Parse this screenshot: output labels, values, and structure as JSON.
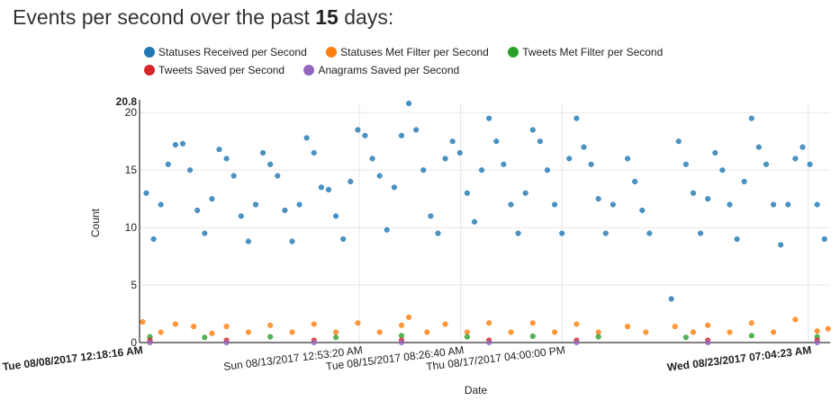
{
  "header": {
    "title_prefix": "Events per second over the past ",
    "title_days": "15",
    "title_suffix": " days:"
  },
  "legend": [
    {
      "name": "Statuses Received per Second",
      "color": "#1f77b4"
    },
    {
      "name": "Statuses Met Filter per Second",
      "color": "#ff7f0e"
    },
    {
      "name": "Tweets Met Filter per Second",
      "color": "#2ca02c"
    },
    {
      "name": "Tweets Saved per Second",
      "color": "#d62728"
    },
    {
      "name": "Anagrams Saved per Second",
      "color": "#9467bd"
    }
  ],
  "chart_data": {
    "type": "scatter",
    "title": "Events per second over the past 15 days:",
    "xlabel": "Date",
    "ylabel": "Count",
    "ylim": [
      0,
      20.8
    ],
    "y_ticks": [
      "0",
      "5",
      "10",
      "15",
      "20"
    ],
    "y_max_label": "20.8",
    "x_range": [
      "2017-08-08 00:18:16",
      "2017-08-23 19:04:23"
    ],
    "x_ticks": [
      {
        "label": "Tue 08/08/2017 12:18:16 AM",
        "t": "2017-08-08 00:18:16",
        "bold": true
      },
      {
        "label": "Sun 08/13/2017 12:53:20 AM",
        "t": "2017-08-13 00:53:20",
        "bold": false
      },
      {
        "label": "Tue 08/15/2017 08:26:40 AM",
        "t": "2017-08-15 08:26:40",
        "bold": false
      },
      {
        "label": "Thu 08/17/2017 04:00:00 PM",
        "t": "2017-08-17 16:00:00",
        "bold": false
      },
      {
        "label": "Wed 08/23/2017 07:04:23 AM",
        "t": "2017-08-23 07:04:23",
        "bold": true
      }
    ],
    "grid": true,
    "legend_position": "top",
    "gap": [
      "2017-08-20 00:00:00",
      "2017-08-20 02:30:00"
    ],
    "series": [
      {
        "name": "Statuses Received per Second",
        "color": "#1f77b4",
        "points": [
          [
            "2017-08-08 04:00",
            13.0
          ],
          [
            "2017-08-08 08:00",
            9.0
          ],
          [
            "2017-08-08 12:00",
            12.0
          ],
          [
            "2017-08-08 16:00",
            15.5
          ],
          [
            "2017-08-08 20:00",
            17.2
          ],
          [
            "2017-08-09 00:00",
            17.3
          ],
          [
            "2017-08-09 04:00",
            15.0
          ],
          [
            "2017-08-09 08:00",
            11.5
          ],
          [
            "2017-08-09 12:00",
            9.5
          ],
          [
            "2017-08-09 16:00",
            12.5
          ],
          [
            "2017-08-09 20:00",
            16.8
          ],
          [
            "2017-08-10 00:00",
            16.0
          ],
          [
            "2017-08-10 04:00",
            14.5
          ],
          [
            "2017-08-10 08:00",
            11.0
          ],
          [
            "2017-08-10 12:00",
            8.8
          ],
          [
            "2017-08-10 16:00",
            12.0
          ],
          [
            "2017-08-10 20:00",
            16.5
          ],
          [
            "2017-08-11 00:00",
            15.5
          ],
          [
            "2017-08-11 04:00",
            14.5
          ],
          [
            "2017-08-11 08:00",
            11.5
          ],
          [
            "2017-08-11 12:00",
            8.8
          ],
          [
            "2017-08-11 16:00",
            12.0
          ],
          [
            "2017-08-11 20:00",
            17.8
          ],
          [
            "2017-08-12 00:00",
            16.5
          ],
          [
            "2017-08-12 04:00",
            13.5
          ],
          [
            "2017-08-12 08:00",
            13.3
          ],
          [
            "2017-08-12 12:00",
            11.0
          ],
          [
            "2017-08-12 16:00",
            9.0
          ],
          [
            "2017-08-12 20:00",
            14.0
          ],
          [
            "2017-08-13 00:00",
            18.5
          ],
          [
            "2017-08-13 04:00",
            18.0
          ],
          [
            "2017-08-13 08:00",
            16.0
          ],
          [
            "2017-08-13 12:00",
            14.5
          ],
          [
            "2017-08-13 16:00",
            9.8
          ],
          [
            "2017-08-13 20:00",
            13.5
          ],
          [
            "2017-08-14 00:00",
            18.0
          ],
          [
            "2017-08-14 04:00",
            20.8
          ],
          [
            "2017-08-14 08:00",
            18.5
          ],
          [
            "2017-08-14 12:00",
            15.0
          ],
          [
            "2017-08-14 16:00",
            11.0
          ],
          [
            "2017-08-14 20:00",
            9.5
          ],
          [
            "2017-08-15 00:00",
            16.0
          ],
          [
            "2017-08-15 04:00",
            17.5
          ],
          [
            "2017-08-15 08:00",
            16.5
          ],
          [
            "2017-08-15 12:00",
            13.0
          ],
          [
            "2017-08-15 16:00",
            10.5
          ],
          [
            "2017-08-15 20:00",
            15.0
          ],
          [
            "2017-08-16 00:00",
            19.5
          ],
          [
            "2017-08-16 04:00",
            17.5
          ],
          [
            "2017-08-16 08:00",
            15.5
          ],
          [
            "2017-08-16 12:00",
            12.0
          ],
          [
            "2017-08-16 16:00",
            9.5
          ],
          [
            "2017-08-16 20:00",
            13.0
          ],
          [
            "2017-08-17 00:00",
            18.5
          ],
          [
            "2017-08-17 04:00",
            17.5
          ],
          [
            "2017-08-17 08:00",
            15.0
          ],
          [
            "2017-08-17 12:00",
            12.0
          ],
          [
            "2017-08-17 16:00",
            9.5
          ],
          [
            "2017-08-17 20:00",
            16.0
          ],
          [
            "2017-08-18 00:00",
            19.5
          ],
          [
            "2017-08-18 04:00",
            17.0
          ],
          [
            "2017-08-18 08:00",
            15.5
          ],
          [
            "2017-08-18 12:00",
            12.5
          ],
          [
            "2017-08-18 16:00",
            9.5
          ],
          [
            "2017-08-18 20:00",
            12.0
          ],
          [
            "2017-08-19 04:00",
            16.0
          ],
          [
            "2017-08-19 08:00",
            14.0
          ],
          [
            "2017-08-19 12:00",
            11.5
          ],
          [
            "2017-08-19 16:00",
            9.5
          ],
          [
            "2017-08-20 04:00",
            3.8
          ],
          [
            "2017-08-20 08:00",
            17.5
          ],
          [
            "2017-08-20 12:00",
            15.5
          ],
          [
            "2017-08-20 16:00",
            13.0
          ],
          [
            "2017-08-20 20:00",
            9.5
          ],
          [
            "2017-08-21 00:00",
            12.5
          ],
          [
            "2017-08-21 04:00",
            16.5
          ],
          [
            "2017-08-21 08:00",
            15.0
          ],
          [
            "2017-08-21 12:00",
            12.0
          ],
          [
            "2017-08-21 16:00",
            9.0
          ],
          [
            "2017-08-21 20:00",
            14.0
          ],
          [
            "2017-08-22 00:00",
            19.5
          ],
          [
            "2017-08-22 04:00",
            17.0
          ],
          [
            "2017-08-22 08:00",
            15.5
          ],
          [
            "2017-08-22 12:00",
            12.0
          ],
          [
            "2017-08-22 16:00",
            8.5
          ],
          [
            "2017-08-22 20:00",
            12.0
          ],
          [
            "2017-08-23 00:00",
            16.0
          ],
          [
            "2017-08-23 04:00",
            17.0
          ],
          [
            "2017-08-23 08:00",
            15.5
          ],
          [
            "2017-08-23 12:00",
            12.0
          ],
          [
            "2017-08-23 16:00",
            9.0
          ]
        ]
      },
      {
        "name": "Statuses Met Filter per Second",
        "color": "#ff7f0e",
        "points": [
          [
            "2017-08-08 02:00",
            1.8
          ],
          [
            "2017-08-08 12:00",
            0.9
          ],
          [
            "2017-08-08 20:00",
            1.6
          ],
          [
            "2017-08-09 06:00",
            1.4
          ],
          [
            "2017-08-09 16:00",
            0.8
          ],
          [
            "2017-08-10 00:00",
            1.4
          ],
          [
            "2017-08-10 12:00",
            0.9
          ],
          [
            "2017-08-11 00:00",
            1.5
          ],
          [
            "2017-08-11 12:00",
            0.9
          ],
          [
            "2017-08-12 00:00",
            1.6
          ],
          [
            "2017-08-12 12:00",
            0.9
          ],
          [
            "2017-08-13 00:00",
            1.7
          ],
          [
            "2017-08-13 12:00",
            0.9
          ],
          [
            "2017-08-14 00:00",
            1.5
          ],
          [
            "2017-08-14 04:00",
            2.2
          ],
          [
            "2017-08-14 14:00",
            0.9
          ],
          [
            "2017-08-15 00:00",
            1.6
          ],
          [
            "2017-08-15 12:00",
            0.9
          ],
          [
            "2017-08-16 00:00",
            1.7
          ],
          [
            "2017-08-16 12:00",
            0.9
          ],
          [
            "2017-08-17 00:00",
            1.7
          ],
          [
            "2017-08-17 12:00",
            0.9
          ],
          [
            "2017-08-18 00:00",
            1.6
          ],
          [
            "2017-08-18 12:00",
            0.9
          ],
          [
            "2017-08-19 04:00",
            1.4
          ],
          [
            "2017-08-19 14:00",
            0.9
          ],
          [
            "2017-08-20 06:00",
            1.4
          ],
          [
            "2017-08-20 16:00",
            0.9
          ],
          [
            "2017-08-21 00:00",
            1.5
          ],
          [
            "2017-08-21 12:00",
            0.9
          ],
          [
            "2017-08-22 00:00",
            1.7
          ],
          [
            "2017-08-22 12:00",
            0.9
          ],
          [
            "2017-08-23 00:00",
            2.0
          ],
          [
            "2017-08-23 12:00",
            1.0
          ],
          [
            "2017-08-23 18:00",
            1.2
          ]
        ]
      },
      {
        "name": "Tweets Met Filter per Second",
        "color": "#2ca02c",
        "points": [
          [
            "2017-08-08 06:00",
            0.5
          ],
          [
            "2017-08-09 12:00",
            0.45
          ],
          [
            "2017-08-11 00:00",
            0.5
          ],
          [
            "2017-08-12 12:00",
            0.45
          ],
          [
            "2017-08-14 00:00",
            0.6
          ],
          [
            "2017-08-15 12:00",
            0.5
          ],
          [
            "2017-08-17 00:00",
            0.55
          ],
          [
            "2017-08-18 12:00",
            0.5
          ],
          [
            "2017-08-20 12:00",
            0.45
          ],
          [
            "2017-08-22 00:00",
            0.6
          ],
          [
            "2017-08-23 12:00",
            0.5
          ]
        ]
      },
      {
        "name": "Tweets Saved per Second",
        "color": "#d62728",
        "points": [
          [
            "2017-08-08 06:00",
            0.2
          ],
          [
            "2017-08-10 00:00",
            0.2
          ],
          [
            "2017-08-12 00:00",
            0.2
          ],
          [
            "2017-08-14 00:00",
            0.2
          ],
          [
            "2017-08-16 00:00",
            0.2
          ],
          [
            "2017-08-18 00:00",
            0.2
          ],
          [
            "2017-08-21 00:00",
            0.2
          ],
          [
            "2017-08-23 12:00",
            0.2
          ]
        ]
      },
      {
        "name": "Anagrams Saved per Second",
        "color": "#9467bd",
        "points": [
          [
            "2017-08-08 06:00",
            0.0
          ],
          [
            "2017-08-10 00:00",
            0.0
          ],
          [
            "2017-08-12 00:00",
            0.0
          ],
          [
            "2017-08-14 00:00",
            0.0
          ],
          [
            "2017-08-16 00:00",
            0.0
          ],
          [
            "2017-08-18 00:00",
            0.0
          ],
          [
            "2017-08-21 00:00",
            0.0
          ],
          [
            "2017-08-23 12:00",
            0.0
          ]
        ]
      }
    ]
  }
}
